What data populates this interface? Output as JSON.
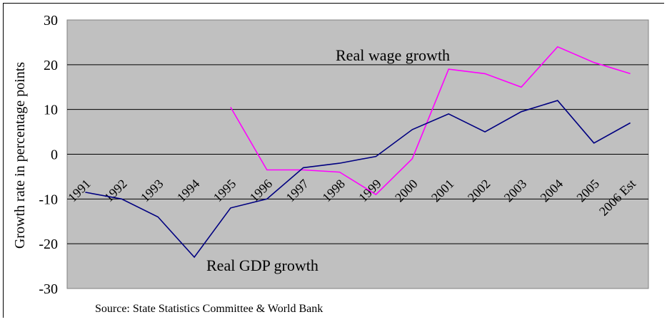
{
  "chart_data": {
    "type": "line",
    "categories": [
      "1991",
      "1992",
      "1993",
      "1994",
      "1995",
      "1996",
      "1997",
      "1998",
      "1999",
      "2000",
      "2001",
      "2002",
      "2003",
      "2004",
      "2005",
      "2006 Est"
    ],
    "series": [
      {
        "name": "Real wage growth",
        "color": "#ff00ff",
        "values": [
          null,
          null,
          null,
          null,
          10.5,
          -3.5,
          -3.5,
          -4.0,
          -9.0,
          -1.0,
          19.0,
          18.0,
          15.0,
          24.0,
          20.5,
          18.0
        ]
      },
      {
        "name": "Real GDP growth",
        "color": "#000080",
        "values": [
          -8.5,
          -10.0,
          -14.0,
          -23.0,
          -12.0,
          -10.0,
          -3.0,
          -2.0,
          -0.5,
          5.5,
          9.0,
          5.0,
          9.5,
          12.0,
          2.5,
          7.0
        ]
      }
    ],
    "ylim": [
      -30,
      30
    ],
    "yticks": [
      "30",
      "20",
      "10",
      "0",
      "-10",
      "-20",
      "-30"
    ],
    "ylabel": "Growth rate in percentage points",
    "xlabel": "",
    "grid": true,
    "plot_background": "#c0c0c0",
    "annotations": {
      "wage": "Real wage growth",
      "gdp": "Real GDP growth"
    },
    "source": "Source: State Statistics Committee & World Bank"
  }
}
